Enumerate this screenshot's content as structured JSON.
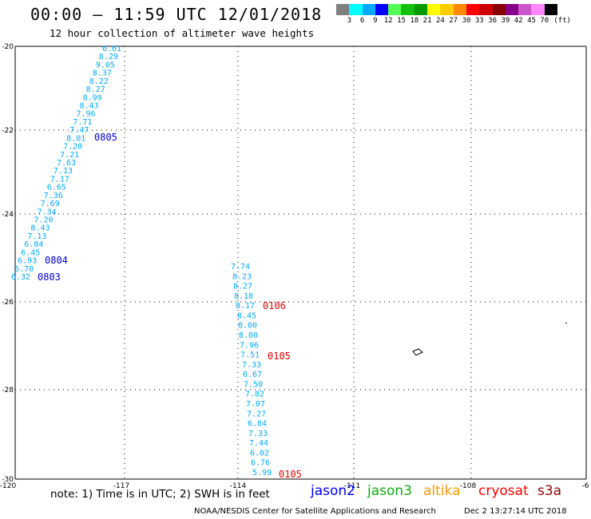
{
  "header": {
    "title": "00:00 – 11:59 UTC 12/01/2018",
    "subtitle": "12 hour collection of altimeter wave heights"
  },
  "color_scale": {
    "colors": [
      "#7f7f7f",
      "#00ffff",
      "#00aaff",
      "#0000ff",
      "#55ff55",
      "#11c011",
      "#009900",
      "#ffff00",
      "#ffcc00",
      "#ff8800",
      "#ff0000",
      "#cc0000",
      "#880000",
      "#880088",
      "#cc55cc",
      "#ff88ff",
      "#000000"
    ],
    "labels": [
      "3",
      "6",
      "9",
      "12",
      "15",
      "18",
      "21",
      "24",
      "27",
      "30",
      "33",
      "36",
      "39",
      "42",
      "45",
      "70",
      "(ft)"
    ]
  },
  "axes": {
    "lon_ticks": [
      "-120",
      "-117",
      "-114",
      "-111",
      "-108",
      "-6"
    ],
    "lat_ticks": [
      "-20",
      "-22",
      "-24",
      "-26",
      "-28",
      "-30"
    ]
  },
  "tracks": {
    "track1": {
      "color": "#00aaff",
      "values": [
        "6.61",
        "8.29",
        "9.05",
        "8.37",
        "8.22",
        "8.27",
        "8.99",
        "8.43",
        "7.96",
        "7.71",
        "7.47",
        "8.01",
        "7.20",
        "7.21",
        "7.63",
        "7.13",
        "7.17",
        "6.65",
        "7.36",
        "7.69",
        "7.34",
        "7.20",
        "8.43",
        "7.13",
        "6.84",
        "6.45",
        "6.93",
        "5.70",
        "6.32"
      ]
    },
    "track2": {
      "color": "#00aaff",
      "values": [
        "7.74",
        "8.23",
        "8.27",
        "8.18",
        "8.17",
        "8.45",
        "8.00",
        "8.00",
        "7.96",
        "7.51",
        "7.33",
        "6.67",
        "7.50",
        "7.82",
        "7.07",
        "7.27",
        "6.84",
        "7.33",
        "7.44",
        "6.02",
        "6.76",
        "5.99"
      ]
    },
    "pass_labels": [
      {
        "text": "0805",
        "color": "#0000cc"
      },
      {
        "text": "0804",
        "color": "#0000cc"
      },
      {
        "text": "0803",
        "color": "#0000cc"
      },
      {
        "text": "0106",
        "color": "#dd0000"
      },
      {
        "text": "0105",
        "color": "#dd0000"
      },
      {
        "text": "0105",
        "color": "#dd0000"
      }
    ]
  },
  "footer": {
    "note": "note: 1) Time is in UTC; 2) SWH is in feet",
    "satellites": [
      {
        "name": "jason2",
        "color": "#0000ff"
      },
      {
        "name": "jason3",
        "color": "#11aa11"
      },
      {
        "name": "altika",
        "color": "#ff9900"
      },
      {
        "name": "cryosat",
        "color": "#ff0000"
      },
      {
        "name": "s3a",
        "color": "#990000"
      }
    ],
    "credit": "NOAA/NESDIS Center for Satellite Applications and Research",
    "timestamp": "Dec  2 13:27:14 UTC 2018"
  }
}
